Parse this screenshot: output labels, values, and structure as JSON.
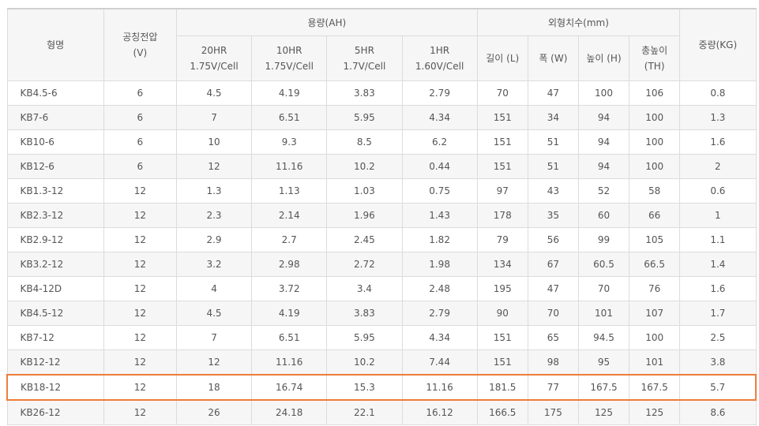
{
  "headers": {
    "model": "형명",
    "voltage_line1": "공칭전압",
    "voltage_line2": "(V)",
    "capacity_group": "용량(AH)",
    "capacity_cols": [
      {
        "line1": "20HR",
        "line2": "1.75V/Cell"
      },
      {
        "line1": "10HR",
        "line2": "1.75V/Cell"
      },
      {
        "line1": "5HR",
        "line2": "1.7V/Cell"
      },
      {
        "line1": "1HR",
        "line2": "1.60V/Cell"
      }
    ],
    "dimension_group": "외형치수(mm)",
    "dimension_cols": [
      {
        "line1": "길이 (L)",
        "line2": ""
      },
      {
        "line1": "폭 (W)",
        "line2": ""
      },
      {
        "line1": "높이 (H)",
        "line2": ""
      },
      {
        "line1": "총높이",
        "line2": "(TH)"
      }
    ],
    "weight": "중량(KG)"
  },
  "highlighted_row_index": 12,
  "highlight_color": "#ee7d3a",
  "rows": [
    [
      "KB4.5-6",
      "6",
      "4.5",
      "4.19",
      "3.83",
      "2.79",
      "70",
      "47",
      "100",
      "106",
      "0.8"
    ],
    [
      "KB7-6",
      "6",
      "7",
      "6.51",
      "5.95",
      "4.34",
      "151",
      "34",
      "94",
      "100",
      "1.3"
    ],
    [
      "KB10-6",
      "6",
      "10",
      "9.3",
      "8.5",
      "6.2",
      "151",
      "51",
      "94",
      "100",
      "1.6"
    ],
    [
      "KB12-6",
      "6",
      "12",
      "11.16",
      "10.2",
      "0.44",
      "151",
      "51",
      "94",
      "100",
      "2"
    ],
    [
      "KB1.3-12",
      "12",
      "1.3",
      "1.13",
      "1.03",
      "0.75",
      "97",
      "43",
      "52",
      "58",
      "0.6"
    ],
    [
      "KB2.3-12",
      "12",
      "2.3",
      "2.14",
      "1.96",
      "1.43",
      "178",
      "35",
      "60",
      "66",
      "1"
    ],
    [
      "KB2.9-12",
      "12",
      "2.9",
      "2.7",
      "2.45",
      "1.82",
      "79",
      "56",
      "99",
      "105",
      "1.1"
    ],
    [
      "KB3.2-12",
      "12",
      "3.2",
      "2.98",
      "2.72",
      "1.98",
      "134",
      "67",
      "60.5",
      "66.5",
      "1.4"
    ],
    [
      "KB4-12D",
      "12",
      "4",
      "3.72",
      "3.4",
      "2.48",
      "195",
      "47",
      "70",
      "76",
      "1.6"
    ],
    [
      "KB4.5-12",
      "12",
      "4.5",
      "4.19",
      "3.83",
      "2.79",
      "90",
      "70",
      "101",
      "107",
      "1.7"
    ],
    [
      "KB7-12",
      "12",
      "7",
      "6.51",
      "5.95",
      "4.34",
      "151",
      "65",
      "94.5",
      "100",
      "2.5"
    ],
    [
      "KB12-12",
      "12",
      "12",
      "11.16",
      "10.2",
      "7.44",
      "151",
      "98",
      "95",
      "101",
      "3.8"
    ],
    [
      "KB18-12",
      "12",
      "18",
      "16.74",
      "15.3",
      "11.16",
      "181.5",
      "77",
      "167.5",
      "167.5",
      "5.7"
    ],
    [
      "KB26-12",
      "12",
      "26",
      "24.18",
      "22.1",
      "16.12",
      "166.5",
      "175",
      "125",
      "125",
      "8.6"
    ]
  ]
}
